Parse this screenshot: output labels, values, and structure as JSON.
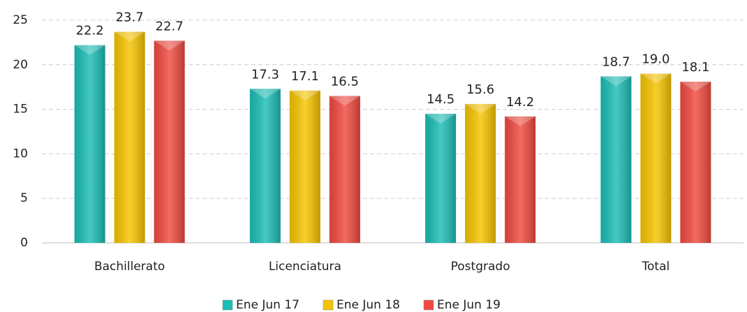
{
  "chart_data": {
    "type": "bar",
    "categories": [
      "Bachillerato",
      "Licenciatura",
      "Postgrado",
      "Total"
    ],
    "series": [
      {
        "name": "Ene Jun 17",
        "color": "#1cbdb6",
        "values": [
          22.2,
          17.3,
          14.5,
          18.7
        ],
        "value_labels": [
          "22.2",
          "17.3",
          "14.5",
          "18.7"
        ]
      },
      {
        "name": "Ene Jun 18",
        "color": "#f6c400",
        "values": [
          23.7,
          17.1,
          15.6,
          19.0
        ],
        "value_labels": [
          "23.7",
          "17.1",
          "15.6",
          "19.0"
        ]
      },
      {
        "name": "Ene Jun 19",
        "color": "#f04a40",
        "values": [
          22.7,
          16.5,
          14.2,
          18.1
        ],
        "value_labels": [
          "22.7",
          "16.5",
          "14.2",
          "18.1"
        ]
      }
    ],
    "ylim": [
      0,
      25
    ],
    "yticks": [
      0,
      5,
      10,
      15,
      20,
      25
    ],
    "grid": true,
    "legend": "bottom"
  }
}
